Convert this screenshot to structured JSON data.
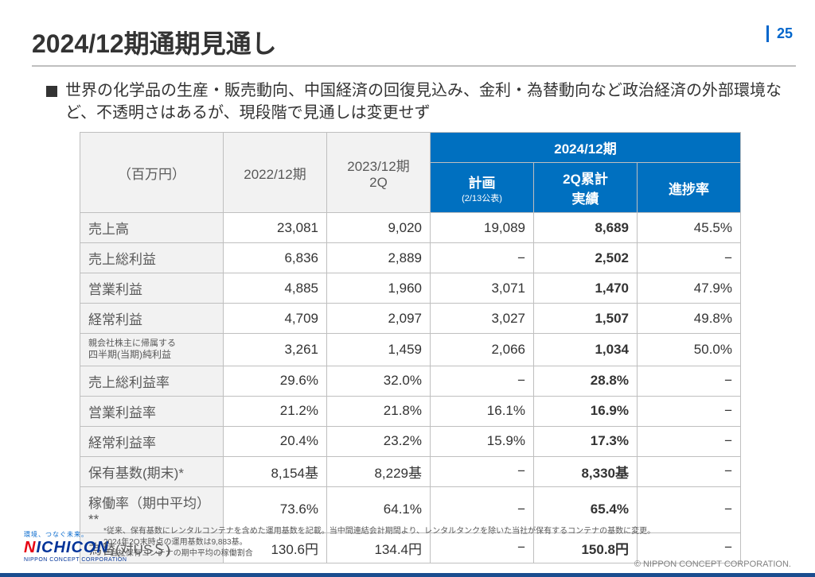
{
  "page_number": "25",
  "title": "2024/12期通期見通し",
  "bullet": "世界の化学品の生産・販売動向、中国経済の回復見込み、金利・為替動向など政治経済の外部環境など、不透明さはあるが、現段階で見通しは変更せず",
  "table": {
    "unit_label": "（百万円）",
    "col1": "2022/12期",
    "col2": "2023/12期\n2Q",
    "group_header": "2024/12期",
    "sub1": "計画",
    "sub1_note": "(2/13公表)",
    "sub2": "2Q累計\n実績",
    "sub3": "進捗率",
    "rows": [
      {
        "label": "売上高",
        "v": [
          "23,081",
          "9,020",
          "19,089",
          "8,689",
          "45.5%"
        ],
        "bold": false
      },
      {
        "label": "売上総利益",
        "v": [
          "6,836",
          "2,889",
          "−",
          "2,502",
          "−"
        ],
        "bold": false
      },
      {
        "label": "営業利益",
        "v": [
          "4,885",
          "1,960",
          "3,071",
          "1,470",
          "47.9%"
        ],
        "bold": false
      },
      {
        "label": "経常利益",
        "v": [
          "4,709",
          "2,097",
          "3,027",
          "1,507",
          "49.8%"
        ],
        "bold": false
      },
      {
        "label_top": "親会社株主に帰属する",
        "label": "四半期(当期)純利益",
        "v": [
          "3,261",
          "1,459",
          "2,066",
          "1,034",
          "50.0%"
        ],
        "bold": false,
        "small": true
      },
      {
        "label": "売上総利益率",
        "v": [
          "29.6%",
          "32.0%",
          "−",
          "28.8%",
          "−"
        ],
        "sep": true
      },
      {
        "label": "営業利益率",
        "v": [
          "21.2%",
          "21.8%",
          "16.1%",
          "16.9%",
          "−"
        ]
      },
      {
        "label": "経常利益率",
        "v": [
          "20.4%",
          "23.2%",
          "15.9%",
          "17.3%",
          "−"
        ]
      },
      {
        "label": "保有基数(期末)*",
        "v": [
          "8,154基",
          "8,229基",
          "−",
          "8,330基",
          "−"
        ],
        "sep": true
      },
      {
        "label": "稼働率（期中平均）**",
        "v": [
          "73.6%",
          "64.1%",
          "−",
          "65.4%",
          "−"
        ]
      },
      {
        "label": "為替(対US＄)",
        "v": [
          "130.6円",
          "134.4円",
          "−",
          "150.8円",
          "−"
        ]
      }
    ]
  },
  "footnotes": [
    "*従来、保有基数にレンタルコンテナを含めた運用基数を記載。当中間連結会計期間より、レンタルタンクを除いた当社が保有するコンテナの基数に変更。",
    " 2024年2Q末時点の運用基数は9,883基。",
    "**当社保有コンテナの期中平均の稼働割合"
  ],
  "logo": {
    "tagline": "環境、つなぐ未来。",
    "name_n": "N",
    "name_rest": "ICHICON",
    "sub": "NIPPON CONCEPT CORPORATION"
  },
  "copyright": "© NIPPON CONCEPT CORPORATION."
}
